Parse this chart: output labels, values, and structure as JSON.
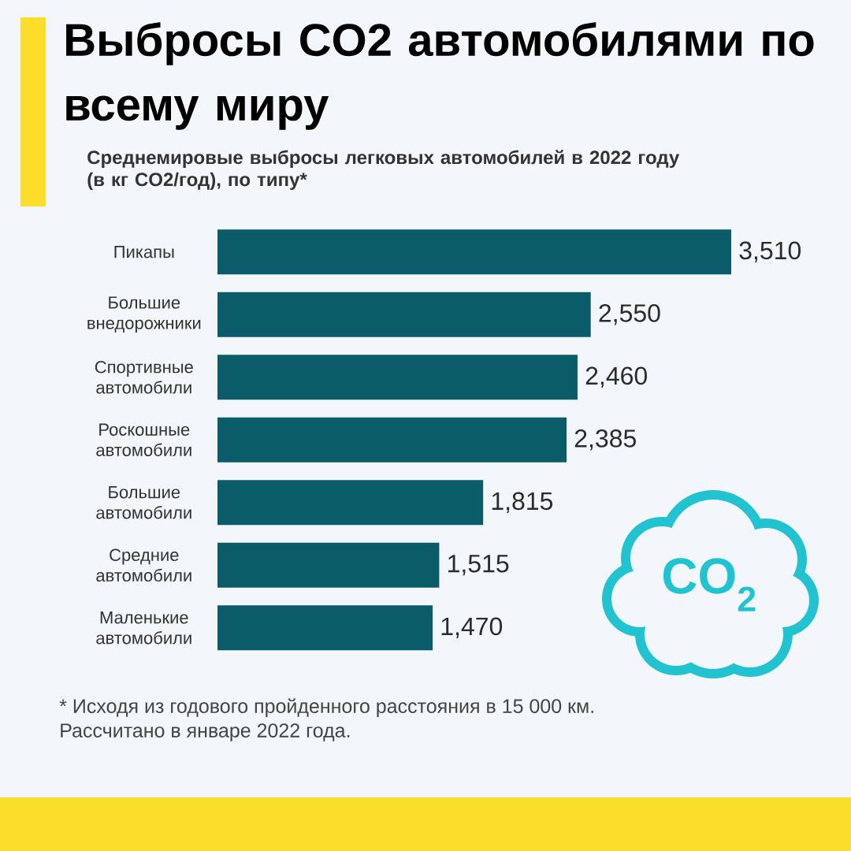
{
  "chart_data": {
    "type": "bar",
    "orientation": "horizontal",
    "title": "Выбросы CO2 автомобилями по всему миру",
    "subtitle": "Среднемировые выбросы легковых автомобилей в 2022 году (в кг CO2/год), по типу*",
    "categories": [
      "Пикапы",
      "Большие внедорожники",
      "Спортивные автомобили",
      "Роскошные автомобили",
      "Большие автомобили",
      "Средние автомобили",
      "Маленькие автомобили"
    ],
    "values": [
      3510,
      2550,
      2460,
      2385,
      1815,
      1515,
      1470
    ],
    "value_labels": [
      "3,510",
      "2,550",
      "2,460",
      "2,385",
      "1,815",
      "1,515",
      "1,470"
    ],
    "color": "#0a5d68",
    "xlim": [
      0,
      3510
    ],
    "tick_labels": "y",
    "annotations": [
      "* Исходя из годового пройденного расстояния в 15 000 км.",
      "Рассчитано в январе 2022 года.",
      "CO$_{2}$"
    ]
  }
}
